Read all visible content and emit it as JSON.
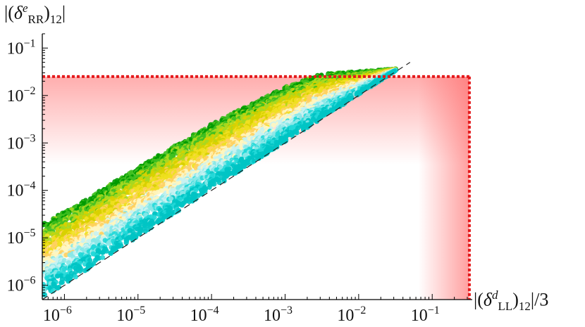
{
  "chart_data": {
    "type": "scatter",
    "xscale": "log",
    "yscale": "log",
    "xlim": [
      5e-07,
      0.35
    ],
    "ylim": [
      5e-07,
      0.2
    ],
    "x_ticks": [
      1e-06,
      1e-05,
      0.0001,
      0.001,
      0.01,
      0.1
    ],
    "y_ticks": [
      1e-06,
      1e-05,
      0.0001,
      0.001,
      0.01,
      0.1
    ],
    "x_tick_labels": [
      {
        "base": "10",
        "exp": "−6"
      },
      {
        "base": "10",
        "exp": "−5"
      },
      {
        "base": "10",
        "exp": "−4"
      },
      {
        "base": "10",
        "exp": "−3"
      },
      {
        "base": "10",
        "exp": "−2"
      },
      {
        "base": "10",
        "exp": "−1"
      }
    ],
    "y_tick_labels": [
      {
        "base": "10",
        "exp": "−6"
      },
      {
        "base": "10",
        "exp": "−5"
      },
      {
        "base": "10",
        "exp": "−4"
      },
      {
        "base": "10",
        "exp": "−3"
      },
      {
        "base": "10",
        "exp": "−2"
      },
      {
        "base": "10",
        "exp": "−1"
      }
    ],
    "ylabel": {
      "pre": "|(",
      "delta": "δ",
      "sup": "e",
      "sub": "RR",
      "post": ")",
      "sub2": "12",
      "end": "|"
    },
    "xlabel": {
      "pre": "|(",
      "delta": "δ",
      "sup": "d",
      "sub": "LL",
      "post": ")",
      "sub2": "12",
      "end": "|/3"
    },
    "reference_line": {
      "style": "dashed",
      "color": "#222222",
      "x": [
        5e-07,
        0.05
      ],
      "y": [
        5e-07,
        0.05
      ]
    },
    "bound": {
      "x_max": 0.32,
      "y_max": 0.025,
      "color": "#e41a1c",
      "style": "dotted"
    },
    "excluded_regions": [
      {
        "axis": "y",
        "from": 0.00035,
        "to": 0.025,
        "color": "#ff6b6b"
      },
      {
        "axis": "x",
        "from": 0.065,
        "to": 0.32,
        "color": "#ff6b6b"
      }
    ],
    "points": {
      "colors": [
        "#00c4c4",
        "#22d8d8",
        "#88e8e8",
        "#c8f2f2",
        "#fff6c0",
        "#ffd060",
        "#f0e020",
        "#d8d000",
        "#a8d820",
        "#40c020",
        "#009a00"
      ],
      "band_lower_y_over_x": 1.05,
      "band_upper_y": [
        {
          "x": 5e-07,
          "y": 2e-05
        },
        {
          "x": 1e-06,
          "y": 3.5e-05
        },
        {
          "x": 1e-05,
          "y": 0.0003
        },
        {
          "x": 0.0001,
          "y": 0.0025
        },
        {
          "x": 0.001,
          "y": 0.015
        },
        {
          "x": 0.003,
          "y": 0.028
        },
        {
          "x": 0.03,
          "y": 0.036
        }
      ],
      "x_range": [
        5e-07,
        0.032
      ],
      "count": 5500
    }
  }
}
